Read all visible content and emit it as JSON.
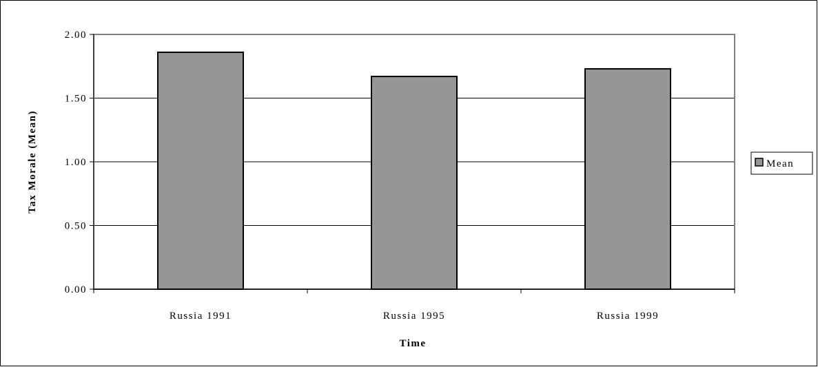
{
  "chart_data": {
    "type": "bar",
    "categories": [
      "Russia 1991",
      "Russia 1995",
      "Russia 1999"
    ],
    "series": [
      {
        "name": "Mean",
        "values": [
          1.86,
          1.67,
          1.73
        ],
        "color": "#969696"
      }
    ],
    "title": "",
    "xlabel": "Time",
    "ylabel": "Tax Morale (Mean)",
    "ylim": [
      0,
      2
    ],
    "yticks": [
      "0.00",
      "0.50",
      "1.00",
      "1.50",
      "2.00"
    ],
    "ytick_values": [
      0,
      0.5,
      1.0,
      1.5,
      2.0
    ],
    "grid": true,
    "legend_position": "right",
    "plot_area_border_color": "#808080"
  }
}
